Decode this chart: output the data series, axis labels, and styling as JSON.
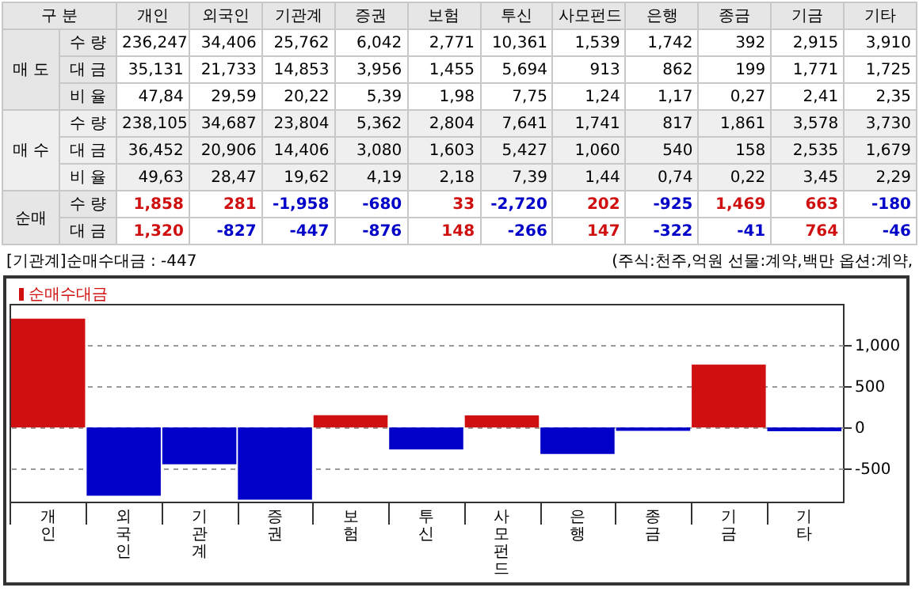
{
  "chart_data": {
    "type": "bar",
    "categories": [
      "개인",
      "외국인",
      "기관계",
      "증권",
      "보험",
      "투신",
      "사모펀드",
      "은행",
      "종금",
      "기금",
      "기타"
    ],
    "series": [
      {
        "name": "순매수대금",
        "values": [
          1320,
          -827,
          -447,
          -876,
          148,
          -266,
          147,
          -322,
          -41,
          764,
          -46
        ],
        "colors": [
          "#d01010",
          "#0000c8",
          "#0000c8",
          "#0000c8",
          "#d01010",
          "#0000c8",
          "#d01010",
          "#0000c8",
          "#0000c8",
          "#d01010",
          "#0000c8"
        ]
      }
    ],
    "ylim": [
      -900,
      1500
    ],
    "yticks": [
      -500,
      0,
      500,
      {
        "value": 1000,
        "label": "1,000"
      }
    ],
    "grid": "y",
    "legend": "top left",
    "annotations": [
      "구 분",
      "매 도",
      "수 량",
      "236,247",
      "34,406",
      "25,762",
      "6,042",
      "2,771",
      "10,361",
      "1,539",
      "1,742",
      "392",
      "2,915",
      "3,910",
      "대 금",
      "35,131",
      "21,733",
      "14,853",
      "3,956",
      "1,455",
      "5,694",
      "913",
      "862",
      "199",
      "1,771",
      "1,725",
      "비 율",
      "47,84",
      "29,59",
      "20,22",
      "5,39",
      "1,98",
      "7,75",
      "1,24",
      "1,17",
      "0,27",
      "2,41",
      "2,35",
      "매 수",
      "수 량",
      "238,105",
      "34,687",
      "23,804",
      "5,362",
      "2,804",
      "7,641",
      "1,741",
      "817",
      "1,861",
      "3,578",
      "3,730",
      "대 금",
      "36,452",
      "20,906",
      "14,406",
      "3,080",
      "1,603",
      "5,427",
      "1,060",
      "540",
      "158",
      "2,535",
      "1,679",
      "비 율",
      "49,63",
      "28,47",
      "19,62",
      "4,19",
      "2,18",
      "7,39",
      "1,44",
      "0,74",
      "0,22",
      "3,45",
      "2,29",
      "순매",
      "수 량",
      "1,858",
      "281",
      "-1,958",
      "-680",
      "33",
      "-2,720",
      "202",
      "-925",
      "1,469",
      "663",
      "-180",
      "대 금",
      "1,320",
      "-827",
      "-447",
      "-876",
      "148",
      "-266",
      "147",
      "-322",
      "-41",
      "764",
      "-46",
      "[기관계]순매수대금 : -447",
      "(주식:천주,억원 선물:계약,백만 옵션:계약,"
    ]
  }
}
